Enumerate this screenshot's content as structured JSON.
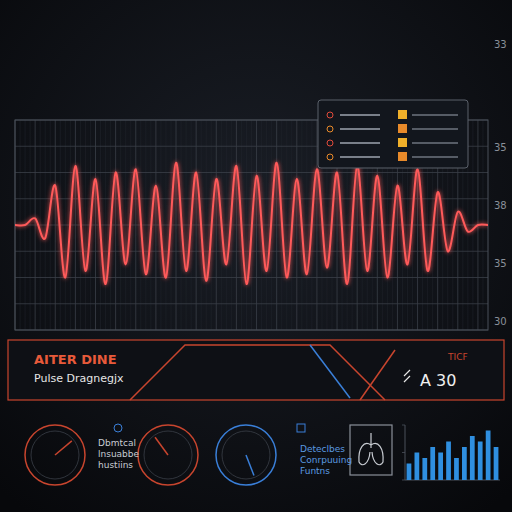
{
  "chart_data": [
    {
      "type": "line",
      "x": [
        0,
        1,
        2,
        3,
        4,
        5,
        6,
        7,
        8,
        9,
        10,
        11,
        12,
        13,
        14,
        15,
        16,
        17,
        18,
        19,
        20,
        21,
        22,
        23,
        24,
        25,
        26,
        27,
        28,
        29,
        30,
        31,
        32,
        33,
        34,
        35,
        36,
        37,
        38,
        39,
        40,
        41,
        42,
        43,
        44,
        45,
        46,
        47
      ],
      "values": [
        0,
        0,
        0.1,
        -0.2,
        0.6,
        -0.8,
        0.9,
        -0.7,
        0.7,
        -0.9,
        0.8,
        -0.6,
        0.85,
        -0.75,
        0.6,
        -0.8,
        0.95,
        -0.7,
        0.8,
        -0.85,
        0.7,
        -0.6,
        0.9,
        -0.9,
        0.75,
        -0.7,
        0.95,
        -0.8,
        0.7,
        -0.75,
        0.85,
        -0.65,
        0.8,
        -0.9,
        0.9,
        -0.7,
        0.75,
        -0.8,
        0.6,
        -0.6,
        0.85,
        -0.7,
        0.5,
        -0.4,
        0.2,
        -0.1,
        0,
        0
      ],
      "color": "#ff5a5a",
      "xlim": [
        0,
        47
      ],
      "ylim": [
        -1.6,
        1.6
      ],
      "xticks": [
        0,
        2,
        4,
        6,
        8,
        10,
        12,
        14,
        16,
        18,
        20,
        22,
        24,
        26,
        28,
        30,
        32,
        34,
        36,
        38,
        40,
        42,
        44,
        46
      ],
      "yticks": [
        -1.6,
        -1.2,
        -0.8,
        -0.4,
        0,
        0.4,
        0.8,
        1.2,
        1.6
      ],
      "grid": true,
      "tick_labels": false
    },
    {
      "type": "bar",
      "categories": [
        null,
        null,
        null,
        null,
        null,
        null,
        null,
        null,
        null,
        null,
        null,
        null
      ],
      "values": [
        3,
        5,
        4,
        6,
        5,
        7,
        4,
        6,
        8,
        7,
        9,
        6
      ],
      "color": "#2f8fe0",
      "ylim": [
        0,
        10
      ],
      "yticks": [
        0,
        5,
        10
      ],
      "grid": false,
      "tick_labels": false
    }
  ],
  "panel": {
    "title": "AITER DINE",
    "subtitle": "Pulse Dragnegjx",
    "tag": "TICF",
    "readout": "A 30"
  },
  "side_labels": [
    "33",
    "35",
    "38",
    "35",
    "30"
  ],
  "captions": [
    {
      "lines": [
        "Dbmtcal",
        "lnsuabbe",
        "hustiins"
      ]
    },
    {
      "lines": [
        "Deteclbes",
        "Conrpuuing",
        "Funtns"
      ]
    }
  ]
}
